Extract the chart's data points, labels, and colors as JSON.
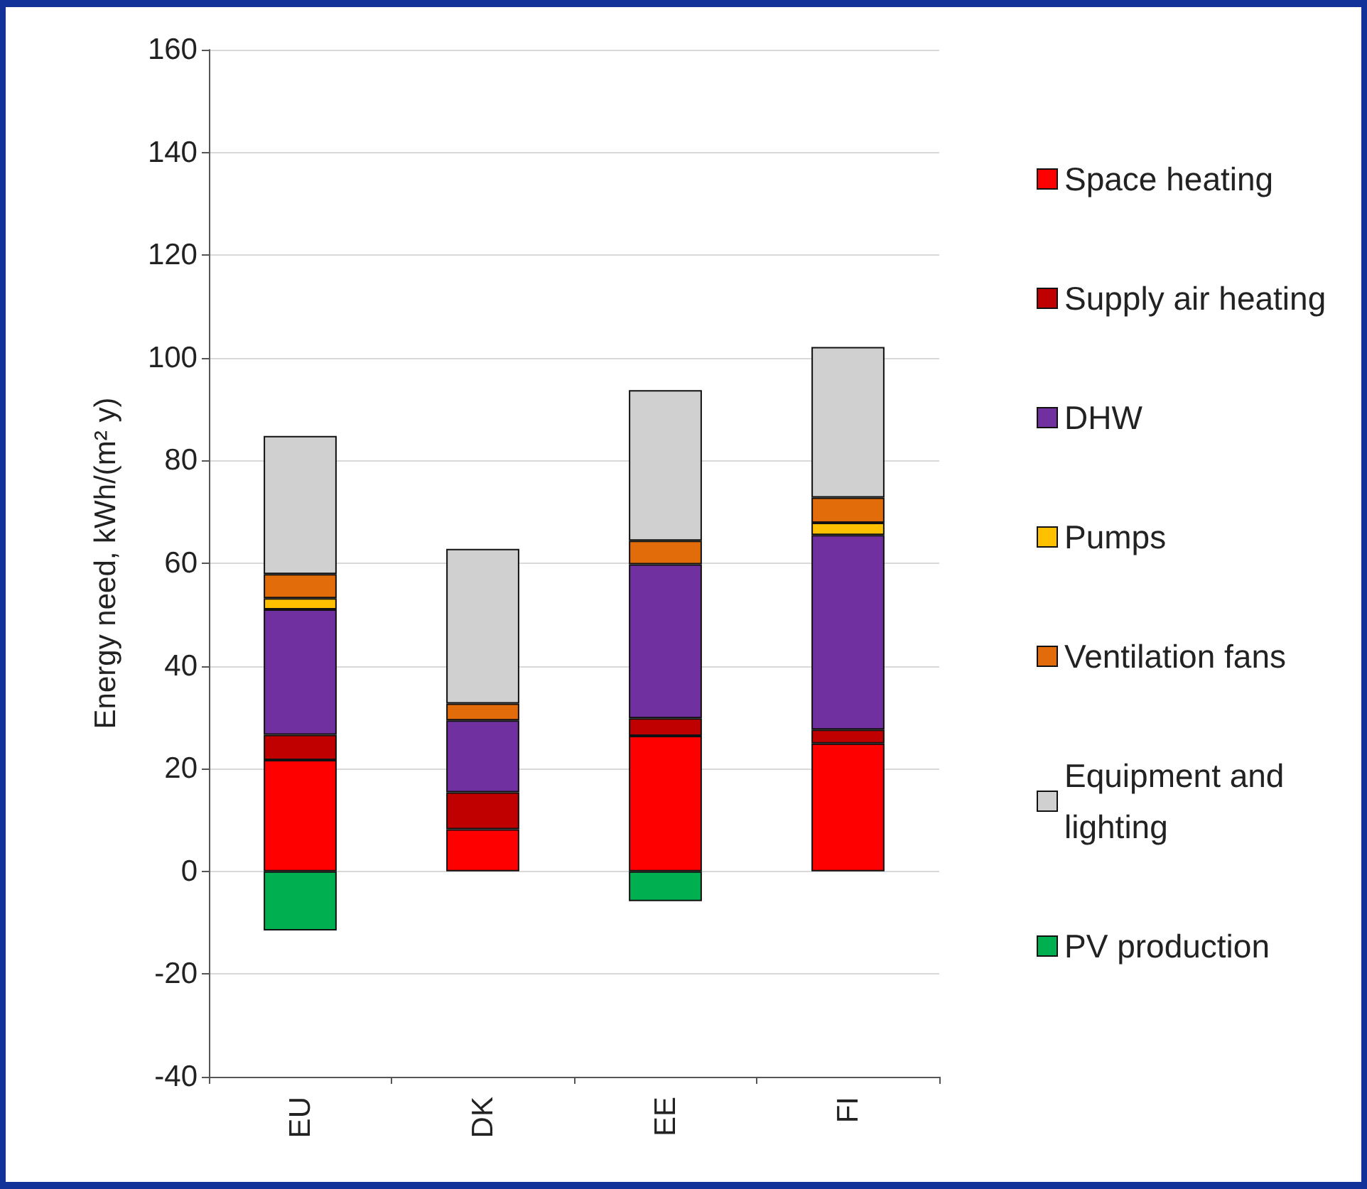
{
  "chart_data": {
    "type": "bar",
    "stacked": true,
    "ylabel": "Energy need, kWh/(m² y)",
    "categories": [
      "EU",
      "DK",
      "EE",
      "FI"
    ],
    "series": [
      {
        "name": "Space heating",
        "color": "#ff0000",
        "values": [
          21.7,
          8.2,
          26.4,
          24.9
        ]
      },
      {
        "name": "Supply air heating",
        "color": "#c00000",
        "values": [
          4.9,
          7.2,
          3.4,
          2.7
        ]
      },
      {
        "name": "DHW",
        "color": "#7030a0",
        "values": [
          24.4,
          14.0,
          30.0,
          37.9
        ]
      },
      {
        "name": "Pumps",
        "color": "#ffc000",
        "values": [
          2.2,
          0,
          0,
          2.4
        ]
      },
      {
        "name": "Ventilation fans",
        "color": "#e26b0a",
        "values": [
          4.7,
          3.3,
          4.6,
          4.9
        ]
      },
      {
        "name": "Equipment and lighting",
        "color": "#d0d0d0",
        "values": [
          26.9,
          30.1,
          29.3,
          29.3
        ]
      },
      {
        "name": "PV production",
        "color": "#00b050",
        "values": [
          -11.5,
          0,
          -5.8,
          0
        ]
      }
    ],
    "ylim": [
      -40,
      160
    ],
    "yticks": [
      -40,
      -20,
      0,
      20,
      40,
      60,
      80,
      100,
      120,
      140,
      160
    ],
    "grid": "y",
    "legend": "right"
  }
}
